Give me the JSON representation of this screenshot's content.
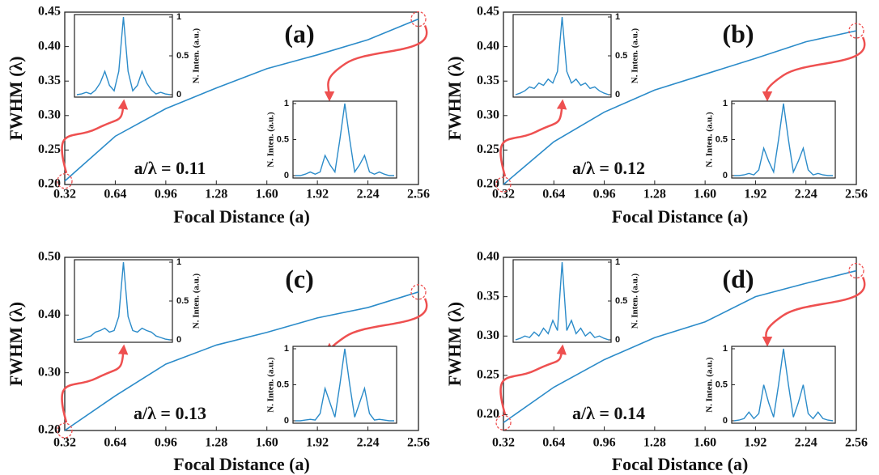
{
  "chart_data": [
    {
      "type": "line",
      "title": "(a)",
      "annotation": "a/λ = 0.11",
      "xlabel": "Focal Distance (a)",
      "ylabel": "FWHM (λ)",
      "x": [
        0.32,
        0.64,
        0.96,
        1.28,
        1.6,
        1.92,
        2.24,
        2.56
      ],
      "xlim": [
        0.32,
        2.56
      ],
      "xticks": [
        0.32,
        0.64,
        0.96,
        1.28,
        {
          "value": 1.6,
          "label": "1.60"
        },
        1.92,
        2.24,
        2.56
      ],
      "ylim": [
        0.2,
        0.45
      ],
      "yticks": [
        {
          "value": 0.2,
          "label": "0.20"
        },
        0.25,
        {
          "value": 0.3,
          "label": "0.30"
        },
        0.35,
        {
          "value": 0.4,
          "label": "0.40"
        },
        0.45
      ],
      "series": [
        {
          "color": "#2b8bc9",
          "values": [
            0.205,
            0.27,
            0.31,
            0.34,
            0.368,
            0.388,
            0.41,
            0.44
          ]
        }
      ],
      "insets": [
        {
          "ylabel": "N. Inten. (a.u.)",
          "ylim": [
            0,
            1
          ],
          "yticks": [
            0,
            0.5,
            1
          ],
          "values": [
            0,
            0.01,
            0.03,
            0.01,
            0.06,
            0.15,
            0.3,
            0.12,
            0.05,
            0.3,
            1,
            0.3,
            0.05,
            0.12,
            0.3,
            0.15,
            0.06,
            0.01,
            0.03,
            0.01,
            0
          ]
        },
        {
          "ylabel": "N. Inten. (a.u.)",
          "ylim": [
            0,
            1
          ],
          "yticks": [
            0,
            0.5,
            1
          ],
          "values": [
            0,
            0,
            0.02,
            0.05,
            0.02,
            0.05,
            0.28,
            0.15,
            0.05,
            0.5,
            1,
            0.5,
            0.05,
            0.15,
            0.28,
            0.05,
            0.02,
            0.05,
            0.02,
            0,
            0
          ]
        }
      ]
    },
    {
      "type": "line",
      "title": "(b)",
      "annotation": "a/λ = 0.12",
      "xlabel": "Focal Distance (a)",
      "ylabel": "FWHM (λ)",
      "x": [
        0.32,
        0.64,
        0.96,
        1.28,
        1.6,
        1.92,
        2.24,
        2.56
      ],
      "xlim": [
        0.32,
        2.56
      ],
      "xticks": [
        0.32,
        0.64,
        0.96,
        1.28,
        {
          "value": 1.6,
          "label": "1.60"
        },
        1.92,
        2.24,
        2.56
      ],
      "ylim": [
        0.2,
        0.45
      ],
      "yticks": [
        {
          "value": 0.2,
          "label": "0.20"
        },
        0.25,
        {
          "value": 0.3,
          "label": "0.30"
        },
        0.35,
        {
          "value": 0.4,
          "label": "0.40"
        },
        0.45
      ],
      "series": [
        {
          "color": "#2b8bc9",
          "values": [
            0.2,
            0.262,
            0.305,
            0.337,
            0.36,
            0.383,
            0.407,
            0.423
          ]
        }
      ],
      "insets": [
        {
          "ylabel": "N. Inten. (a.u.)",
          "ylim": [
            0,
            1
          ],
          "yticks": [
            0,
            0.5,
            1
          ],
          "values": [
            0,
            0.02,
            0.05,
            0.1,
            0.08,
            0.15,
            0.12,
            0.2,
            0.15,
            0.3,
            1,
            0.3,
            0.15,
            0.2,
            0.12,
            0.15,
            0.08,
            0.1,
            0.05,
            0.02,
            0
          ]
        },
        {
          "ylabel": "N. Inten. (a.u.)",
          "ylim": [
            0,
            1
          ],
          "yticks": [
            0,
            0.5,
            1
          ],
          "values": [
            0,
            0,
            0.01,
            0.03,
            0.01,
            0.08,
            0.38,
            0.2,
            0.05,
            0.5,
            1,
            0.5,
            0.05,
            0.2,
            0.38,
            0.08,
            0.01,
            0.03,
            0.01,
            0,
            0
          ]
        }
      ]
    },
    {
      "type": "line",
      "title": "(c)",
      "annotation": "a/λ = 0.13",
      "xlabel": "Focal Distance (a)",
      "ylabel": "FWHM (λ)",
      "x": [
        0.32,
        0.64,
        0.96,
        1.28,
        1.6,
        1.92,
        2.24,
        2.56
      ],
      "xlim": [
        0.32,
        2.56
      ],
      "xticks": [
        0.32,
        0.64,
        0.96,
        1.28,
        {
          "value": 1.6,
          "label": "1.60"
        },
        1.92,
        2.24,
        2.56
      ],
      "ylim": [
        0.2,
        0.5
      ],
      "yticks": [
        {
          "value": 0.2,
          "label": "0.20"
        },
        {
          "value": 0.3,
          "label": "0.30"
        },
        {
          "value": 0.4,
          "label": "0.40"
        },
        {
          "value": 0.5,
          "label": "0.50"
        }
      ],
      "series": [
        {
          "color": "#2b8bc9",
          "values": [
            0.2,
            0.26,
            0.315,
            0.348,
            0.37,
            0.395,
            0.413,
            0.44
          ]
        }
      ],
      "insets": [
        {
          "ylabel": "N. Inten. (a.u.)",
          "ylim": [
            0,
            1
          ],
          "yticks": [
            0,
            0.5,
            1
          ],
          "values": [
            0,
            0.01,
            0.03,
            0.05,
            0.1,
            0.12,
            0.15,
            0.1,
            0.12,
            0.3,
            1,
            0.3,
            0.12,
            0.1,
            0.15,
            0.12,
            0.1,
            0.05,
            0.03,
            0.01,
            0
          ]
        },
        {
          "ylabel": "N. Inten. (a.u.)",
          "ylim": [
            0,
            1
          ],
          "yticks": [
            0,
            0.5,
            1
          ],
          "values": [
            0,
            0,
            0.01,
            0.02,
            0.01,
            0.1,
            0.45,
            0.25,
            0.05,
            0.5,
            1,
            0.5,
            0.05,
            0.25,
            0.45,
            0.1,
            0.01,
            0.02,
            0.01,
            0,
            0
          ]
        }
      ]
    },
    {
      "type": "line",
      "title": "(d)",
      "annotation": "a/λ = 0.14",
      "xlabel": "Focal Distance (a)",
      "ylabel": "FWHM (λ)",
      "x": [
        0.32,
        0.64,
        0.96,
        1.28,
        1.6,
        1.92,
        2.24,
        2.56
      ],
      "xlim": [
        0.32,
        2.56
      ],
      "xticks": [
        0.32,
        0.64,
        0.96,
        1.28,
        {
          "value": 1.6,
          "label": "1.60"
        },
        1.92,
        2.24,
        2.56
      ],
      "ylim": [
        0.18,
        0.4
      ],
      "yticks": [
        {
          "value": 0.2,
          "label": "0.20"
        },
        0.25,
        {
          "value": 0.3,
          "label": "0.30"
        },
        0.35,
        {
          "value": 0.4,
          "label": "0.40"
        }
      ],
      "series": [
        {
          "color": "#2b8bc9",
          "values": [
            0.19,
            0.235,
            0.27,
            0.298,
            0.318,
            0.35,
            0.367,
            0.383
          ]
        }
      ],
      "insets": [
        {
          "ylabel": "N. Inten. (a.u.)",
          "ylim": [
            0,
            1
          ],
          "yticks": [
            0,
            0.5,
            1
          ],
          "values": [
            0,
            0.02,
            0.05,
            0.03,
            0.1,
            0.05,
            0.15,
            0.08,
            0.25,
            0.12,
            1,
            0.12,
            0.25,
            0.08,
            0.15,
            0.05,
            0.1,
            0.03,
            0.05,
            0.02,
            0
          ]
        },
        {
          "ylabel": "N. Inten. (a.u.)",
          "ylim": [
            0,
            1
          ],
          "yticks": [
            0,
            0.5,
            1
          ],
          "values": [
            0,
            0.01,
            0.03,
            0.12,
            0.03,
            0.1,
            0.5,
            0.25,
            0.05,
            0.5,
            1,
            0.5,
            0.05,
            0.25,
            0.5,
            0.1,
            0.03,
            0.12,
            0.03,
            0.01,
            0
          ]
        }
      ]
    }
  ]
}
